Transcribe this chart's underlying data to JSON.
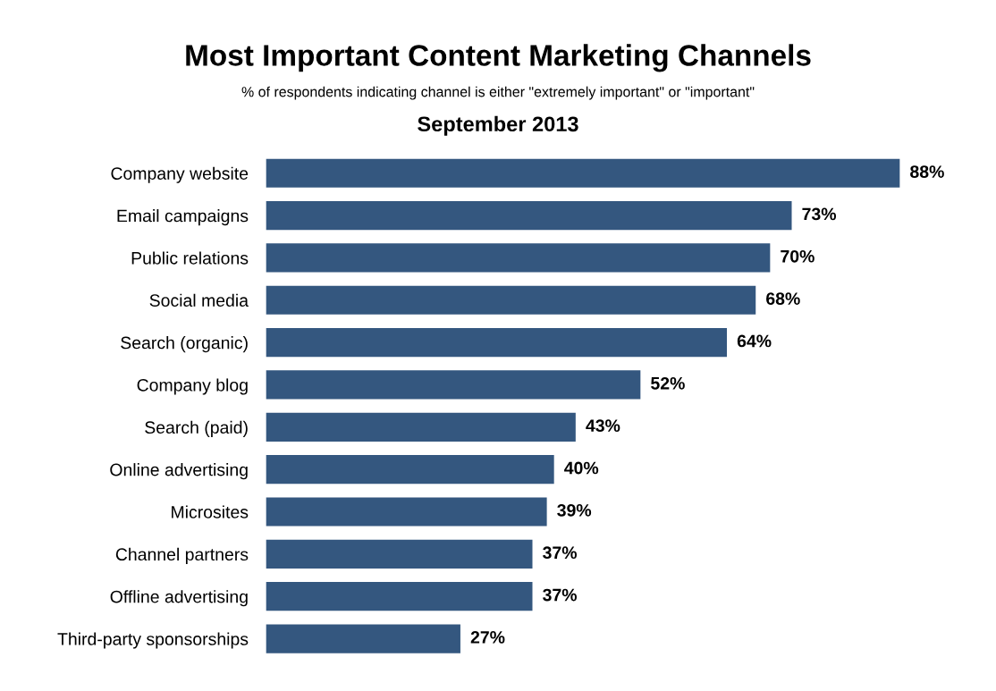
{
  "chart_data": {
    "type": "bar",
    "orientation": "horizontal",
    "title": "Most Important Content Marketing Channels",
    "subtitle": "% of respondents indicating channel is either \"extremely important\" or \"important\"",
    "annotations": [
      "September 2013"
    ],
    "categories": [
      "Company website",
      "Email campaigns",
      "Public relations",
      "Social media",
      "Search (organic)",
      "Company blog",
      "Search (paid)",
      "Online advertising",
      "Microsites",
      "Channel partners",
      "Offline advertising",
      "Third-party sponsorships"
    ],
    "values": [
      88,
      73,
      70,
      68,
      64,
      52,
      43,
      40,
      39,
      37,
      37,
      27
    ],
    "value_labels": [
      "88%",
      "73%",
      "70%",
      "68%",
      "64%",
      "52%",
      "43%",
      "40%",
      "39%",
      "37%",
      "37%",
      "27%"
    ],
    "color": "#34577f",
    "grid": false,
    "legend": false
  }
}
